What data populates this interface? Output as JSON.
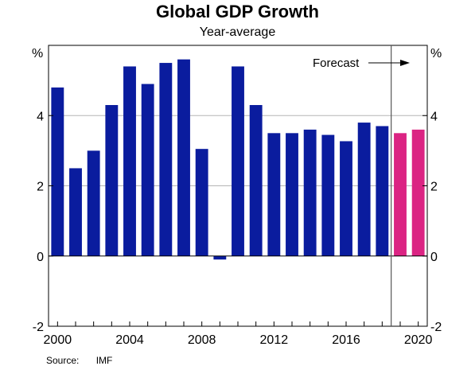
{
  "chart_data": {
    "type": "bar",
    "title": "Global GDP Growth",
    "subtitle": "Year-average",
    "ylabel_left": "%",
    "ylabel_right": "%",
    "ylim": [
      -2,
      6
    ],
    "yticks": [
      -2,
      0,
      2,
      4
    ],
    "x_tick_labels": [
      "2000",
      "2004",
      "2008",
      "2012",
      "2016",
      "2020"
    ],
    "grid": true,
    "categories": [
      "2000",
      "2001",
      "2002",
      "2003",
      "2004",
      "2005",
      "2006",
      "2007",
      "2008",
      "2009",
      "2010",
      "2011",
      "2012",
      "2013",
      "2014",
      "2015",
      "2016",
      "2017",
      "2018",
      "2019",
      "2020"
    ],
    "series": [
      {
        "color": "#0a1c9e",
        "values": [
          4.8,
          2.5,
          3.0,
          4.3,
          5.4,
          4.9,
          5.5,
          5.6,
          3.05,
          -0.1,
          5.4,
          4.3,
          3.5,
          3.5,
          3.6,
          3.45,
          3.27,
          3.8,
          3.7,
          null,
          null
        ]
      },
      {
        "color": "#db2483",
        "values": [
          null,
          null,
          null,
          null,
          null,
          null,
          null,
          null,
          null,
          null,
          null,
          null,
          null,
          null,
          null,
          null,
          null,
          null,
          null,
          3.5,
          3.6
        ]
      }
    ],
    "annotation": "Forecast",
    "source_label": "Source:",
    "source_value": "IMF"
  }
}
